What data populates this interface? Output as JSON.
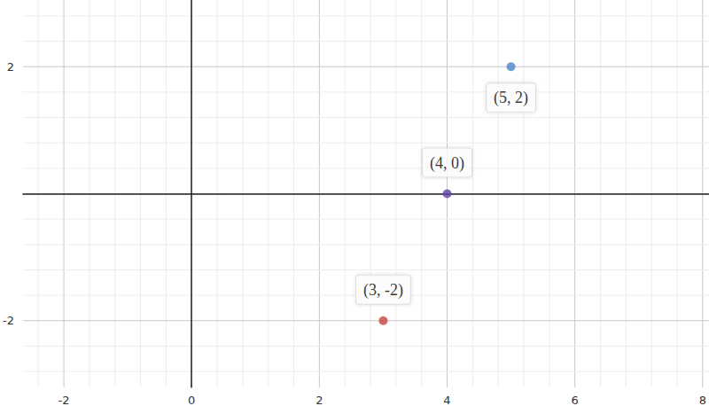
{
  "chart_data": {
    "type": "scatter",
    "x": [
      5,
      4,
      3
    ],
    "values": [
      2,
      0,
      -2
    ],
    "colors": [
      "#4a86c8",
      "#6042a6",
      "#c74440"
    ],
    "data_labels": true,
    "value_labels": [
      "(5, 2)",
      "(4, 0)",
      "(3, -2)"
    ],
    "xlim": [
      -2.64,
      8.1
    ],
    "ylim": [
      -3.05,
      3.05
    ],
    "xticks": [
      -2,
      0,
      2,
      4,
      6,
      8
    ],
    "yticks": [
      -2,
      2
    ],
    "grid": true
  }
}
